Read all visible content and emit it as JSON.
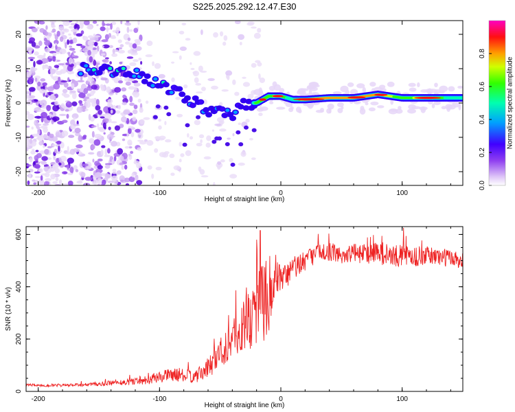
{
  "title": "S225.2025.292.12.47.E30",
  "chart_data": [
    {
      "type": "heatmap",
      "xlabel": "Height of straight line (km)",
      "ylabel": "Frequency (Hz)",
      "xlim": [
        -210,
        150
      ],
      "ylim": [
        -24,
        24
      ],
      "xticks": [
        -200,
        -100,
        0,
        100
      ],
      "yticks": [
        -20,
        -10,
        0,
        10,
        20
      ],
      "colorbar": {
        "label": "Normalized spectral amplitude",
        "range": [
          0.0,
          1.0
        ],
        "ticks": [
          "0.0",
          "0.2",
          "0.4",
          "0.6",
          "0.8"
        ],
        "tick_values": [
          0.0,
          0.2,
          0.4,
          0.6,
          0.8
        ],
        "colors": [
          "#e8d8f8",
          "#c090f0",
          "#7a1ee8",
          "#2a00ff",
          "#00c8ff",
          "#00ff80",
          "#a0ff00",
          "#ffd000",
          "#ff2020",
          "#ff00c0"
        ]
      },
      "ridge": {
        "x": [
          -160,
          -150,
          -140,
          -130,
          -120,
          -110,
          -100,
          -90,
          -80,
          -70,
          -60,
          -50,
          -40,
          -30,
          -20,
          -10,
          0,
          10,
          20,
          40,
          60,
          80,
          100,
          120,
          140,
          150
        ],
        "frequency": [
          10,
          10,
          9,
          9,
          9,
          7,
          5,
          4,
          2,
          0,
          -2,
          -3,
          -4,
          0,
          0,
          2,
          2,
          1,
          1,
          1.5,
          1.5,
          2.5,
          1.5,
          1.5,
          1.5,
          1.5
        ],
        "amplitude": [
          0.3,
          0.35,
          0.4,
          0.45,
          0.4,
          0.35,
          0.35,
          0.3,
          0.3,
          0.3,
          0.25,
          0.25,
          0.25,
          0.45,
          0.7,
          0.75,
          0.8,
          0.5,
          0.9,
          0.85,
          0.9,
          0.9,
          0.7,
          0.85,
          0.6,
          0.5
        ]
      }
    },
    {
      "type": "line",
      "xlabel": "Height of straight line (km)",
      "ylabel": "SNR (10 * v/v)",
      "xlim": [
        -210,
        150
      ],
      "ylim": [
        0,
        630
      ],
      "xticks": [
        -200,
        -100,
        0,
        100
      ],
      "yticks": [
        0,
        200,
        400,
        600
      ],
      "color": "#ee2222",
      "series": [
        {
          "name": "SNR",
          "x": [
            -210,
            -190,
            -170,
            -150,
            -130,
            -110,
            -100,
            -90,
            -80,
            -70,
            -60,
            -50,
            -40,
            -30,
            -20,
            -15,
            -10,
            0,
            10,
            20,
            30,
            40,
            50,
            60,
            70,
            80,
            90,
            100,
            110,
            120,
            130,
            140,
            150
          ],
          "values": [
            25,
            22,
            24,
            28,
            35,
            45,
            55,
            65,
            60,
            55,
            90,
            150,
            200,
            250,
            320,
            340,
            380,
            420,
            470,
            500,
            530,
            535,
            520,
            530,
            525,
            535,
            515,
            520,
            515,
            520,
            515,
            510,
            500
          ],
          "noise": [
            5,
            5,
            6,
            8,
            12,
            18,
            22,
            25,
            25,
            25,
            40,
            60,
            80,
            100,
            150,
            180,
            150,
            60,
            50,
            40,
            35,
            35,
            35,
            35,
            40,
            45,
            45,
            40,
            40,
            35,
            35,
            35,
            35
          ]
        }
      ],
      "peaks": [
        {
          "x": -17,
          "value": 615
        },
        {
          "x": 101,
          "value": 625
        },
        {
          "x": -20,
          "value": 580
        }
      ]
    }
  ]
}
